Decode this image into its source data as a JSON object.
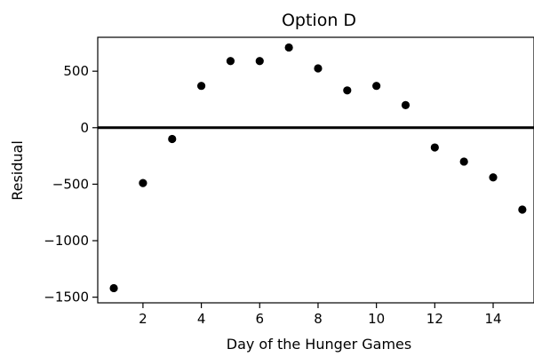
{
  "chart_data": {
    "type": "scatter",
    "title": "Option D",
    "xlabel": "Day of the Hunger Games",
    "ylabel": "Residual",
    "xlim": [
      0.45,
      15.4
    ],
    "ylim": [
      -1550,
      800
    ],
    "xticks": [
      2,
      4,
      6,
      8,
      10,
      12,
      14
    ],
    "xtick_labels": [
      "2",
      "4",
      "6",
      "8",
      "10",
      "12",
      "14"
    ],
    "yticks": [
      500,
      0,
      -500,
      -1000,
      -1500
    ],
    "ytick_labels": [
      "500",
      "0",
      "−500",
      "−1000",
      "−1500"
    ],
    "grid": false,
    "legend": "none",
    "reference_line": {
      "y": 0
    },
    "colors": {
      "points": "#000000",
      "reference_line": "#000000",
      "axes": "#000000"
    },
    "series": [
      {
        "x": [
          1,
          2,
          3,
          4,
          5,
          6,
          7,
          8,
          9,
          10,
          11,
          12,
          13,
          14,
          15
        ],
        "y": [
          -1420,
          -490,
          -100,
          370,
          590,
          590,
          710,
          525,
          330,
          370,
          200,
          -175,
          -300,
          -440,
          -725
        ]
      }
    ]
  }
}
